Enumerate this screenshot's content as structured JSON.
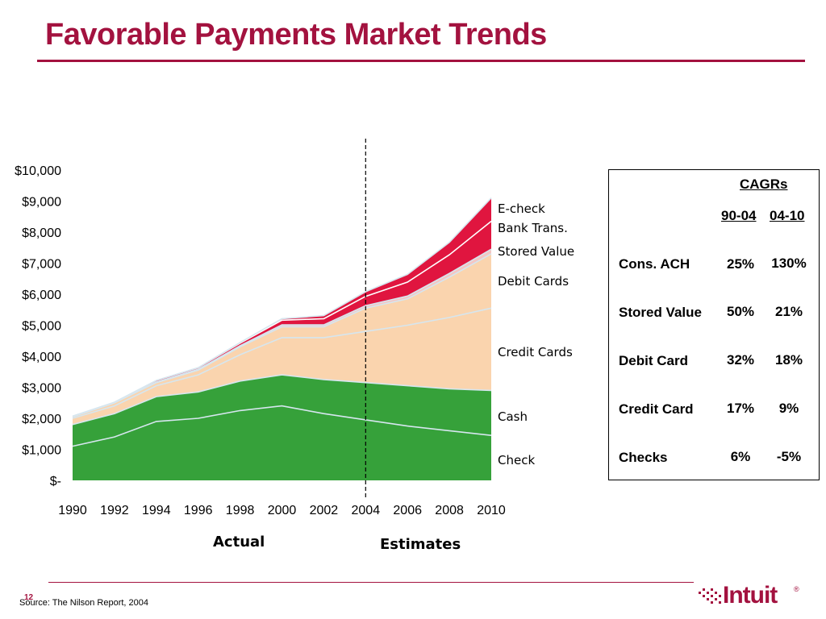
{
  "slide": {
    "title": "Favorable Payments Market Trends",
    "source": "Source: The Nilson Report, 2004",
    "page_number": "12",
    "logo_text": "Intuit",
    "logo_mark": "®"
  },
  "colors": {
    "title": "#a3123f",
    "check": "#36a13a",
    "cash": "#36a13a",
    "credit_cards": "#fad4ae",
    "debit_cards": "#fad4ae",
    "stored_value": "#f4c7c3",
    "bank_trans": "#e0153f",
    "echeck": "#e0153f",
    "boundary_line": "#d6e6ef"
  },
  "chart_data": {
    "type": "area",
    "stacked": true,
    "x": [
      1990,
      1992,
      1994,
      1996,
      1998,
      2000,
      2002,
      2004,
      2006,
      2008,
      2010
    ],
    "tick_labels_x": [
      "1990",
      "1992",
      "1994",
      "1996",
      "1998",
      "2000",
      "2002",
      "2004",
      "2006",
      "2008",
      "2010"
    ],
    "tick_labels_y": [
      "$-",
      "$1,000",
      "$2,000",
      "$3,000",
      "$4,000",
      "$5,000",
      "$6,000",
      "$7,000",
      "$8,000",
      "$9,000",
      "$10,000"
    ],
    "ylim": [
      0,
      10000
    ],
    "series": [
      {
        "name": "Check",
        "values": [
          1100,
          1400,
          1900,
          2000,
          2250,
          2400,
          2150,
          1950,
          1750,
          1600,
          1450
        ]
      },
      {
        "name": "Cash",
        "values": [
          700,
          750,
          800,
          850,
          950,
          1000,
          1100,
          1200,
          1300,
          1350,
          1450
        ]
      },
      {
        "name": "Credit Cards",
        "values": [
          200,
          250,
          350,
          550,
          850,
          1200,
          1350,
          1650,
          1950,
          2300,
          2650
        ]
      },
      {
        "name": "Debit Cards",
        "values": [
          50,
          100,
          100,
          150,
          250,
          350,
          350,
          750,
          850,
          1300,
          1750
        ]
      },
      {
        "name": "Stored Value",
        "values": [
          0,
          0,
          20,
          30,
          40,
          60,
          60,
          80,
          90,
          120,
          150
        ]
      },
      {
        "name": "Bank Trans.",
        "values": [
          20,
          20,
          50,
          50,
          80,
          150,
          200,
          300,
          450,
          600,
          900
        ]
      },
      {
        "name": "E-check",
        "values": [
          0,
          0,
          0,
          0,
          20,
          50,
          100,
          150,
          250,
          400,
          750
        ]
      }
    ],
    "divider_at": 2004,
    "period_labels": [
      "Actual",
      "Estimates"
    ],
    "grid": false
  },
  "cagr_table": {
    "title": "CAGRs",
    "columns": [
      "90-04",
      "04-10"
    ],
    "rows": [
      {
        "label": "Cons. ACH",
        "values": [
          "25%",
          "130%"
        ]
      },
      {
        "label": "Stored Value",
        "values": [
          "50%",
          "21%"
        ]
      },
      {
        "label": "Debit Card",
        "values": [
          "32%",
          "18%"
        ]
      },
      {
        "label": "Credit Card",
        "values": [
          "17%",
          "9%"
        ]
      },
      {
        "label": "Checks",
        "values": [
          "6%",
          "-5%"
        ]
      }
    ]
  }
}
